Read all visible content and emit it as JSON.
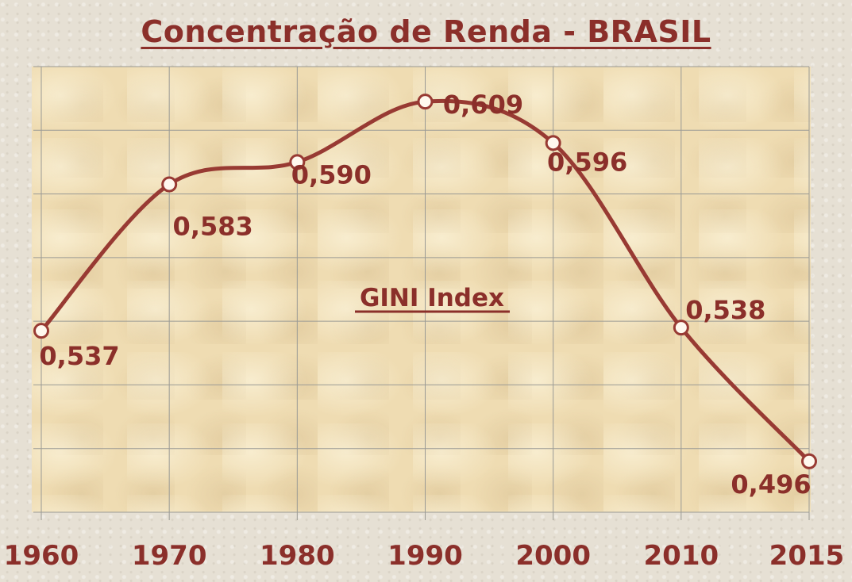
{
  "title": "Concentração de Renda - BRASIL",
  "annotation": "GINI  Index",
  "colors": {
    "line": "#983a33",
    "text": "#8b2f2a",
    "grid": "#9a9a95",
    "plot_background": "#efdcb2",
    "marker_fill": "#fff8ee"
  },
  "chart_data": {
    "type": "line",
    "title": "Concentração de Renda - BRASIL",
    "annotation": "GINI  Index",
    "categories": [
      "1960",
      "1970",
      "1980",
      "1990",
      "2000",
      "2010",
      "2015"
    ],
    "x": [
      1960,
      1970,
      1980,
      1990,
      2000,
      2010,
      2015
    ],
    "series": [
      {
        "values": [
          0.537,
          0.583,
          0.59,
          0.609,
          0.596,
          0.538,
          0.496
        ],
        "labels": [
          "0,537",
          "0,583",
          "0,590",
          "0,609",
          "0,596",
          "0,538",
          "0,496"
        ]
      }
    ],
    "ylim": [
      0.48,
      0.62
    ],
    "grid": true,
    "smooth": true,
    "xlabel": "",
    "ylabel": ""
  }
}
